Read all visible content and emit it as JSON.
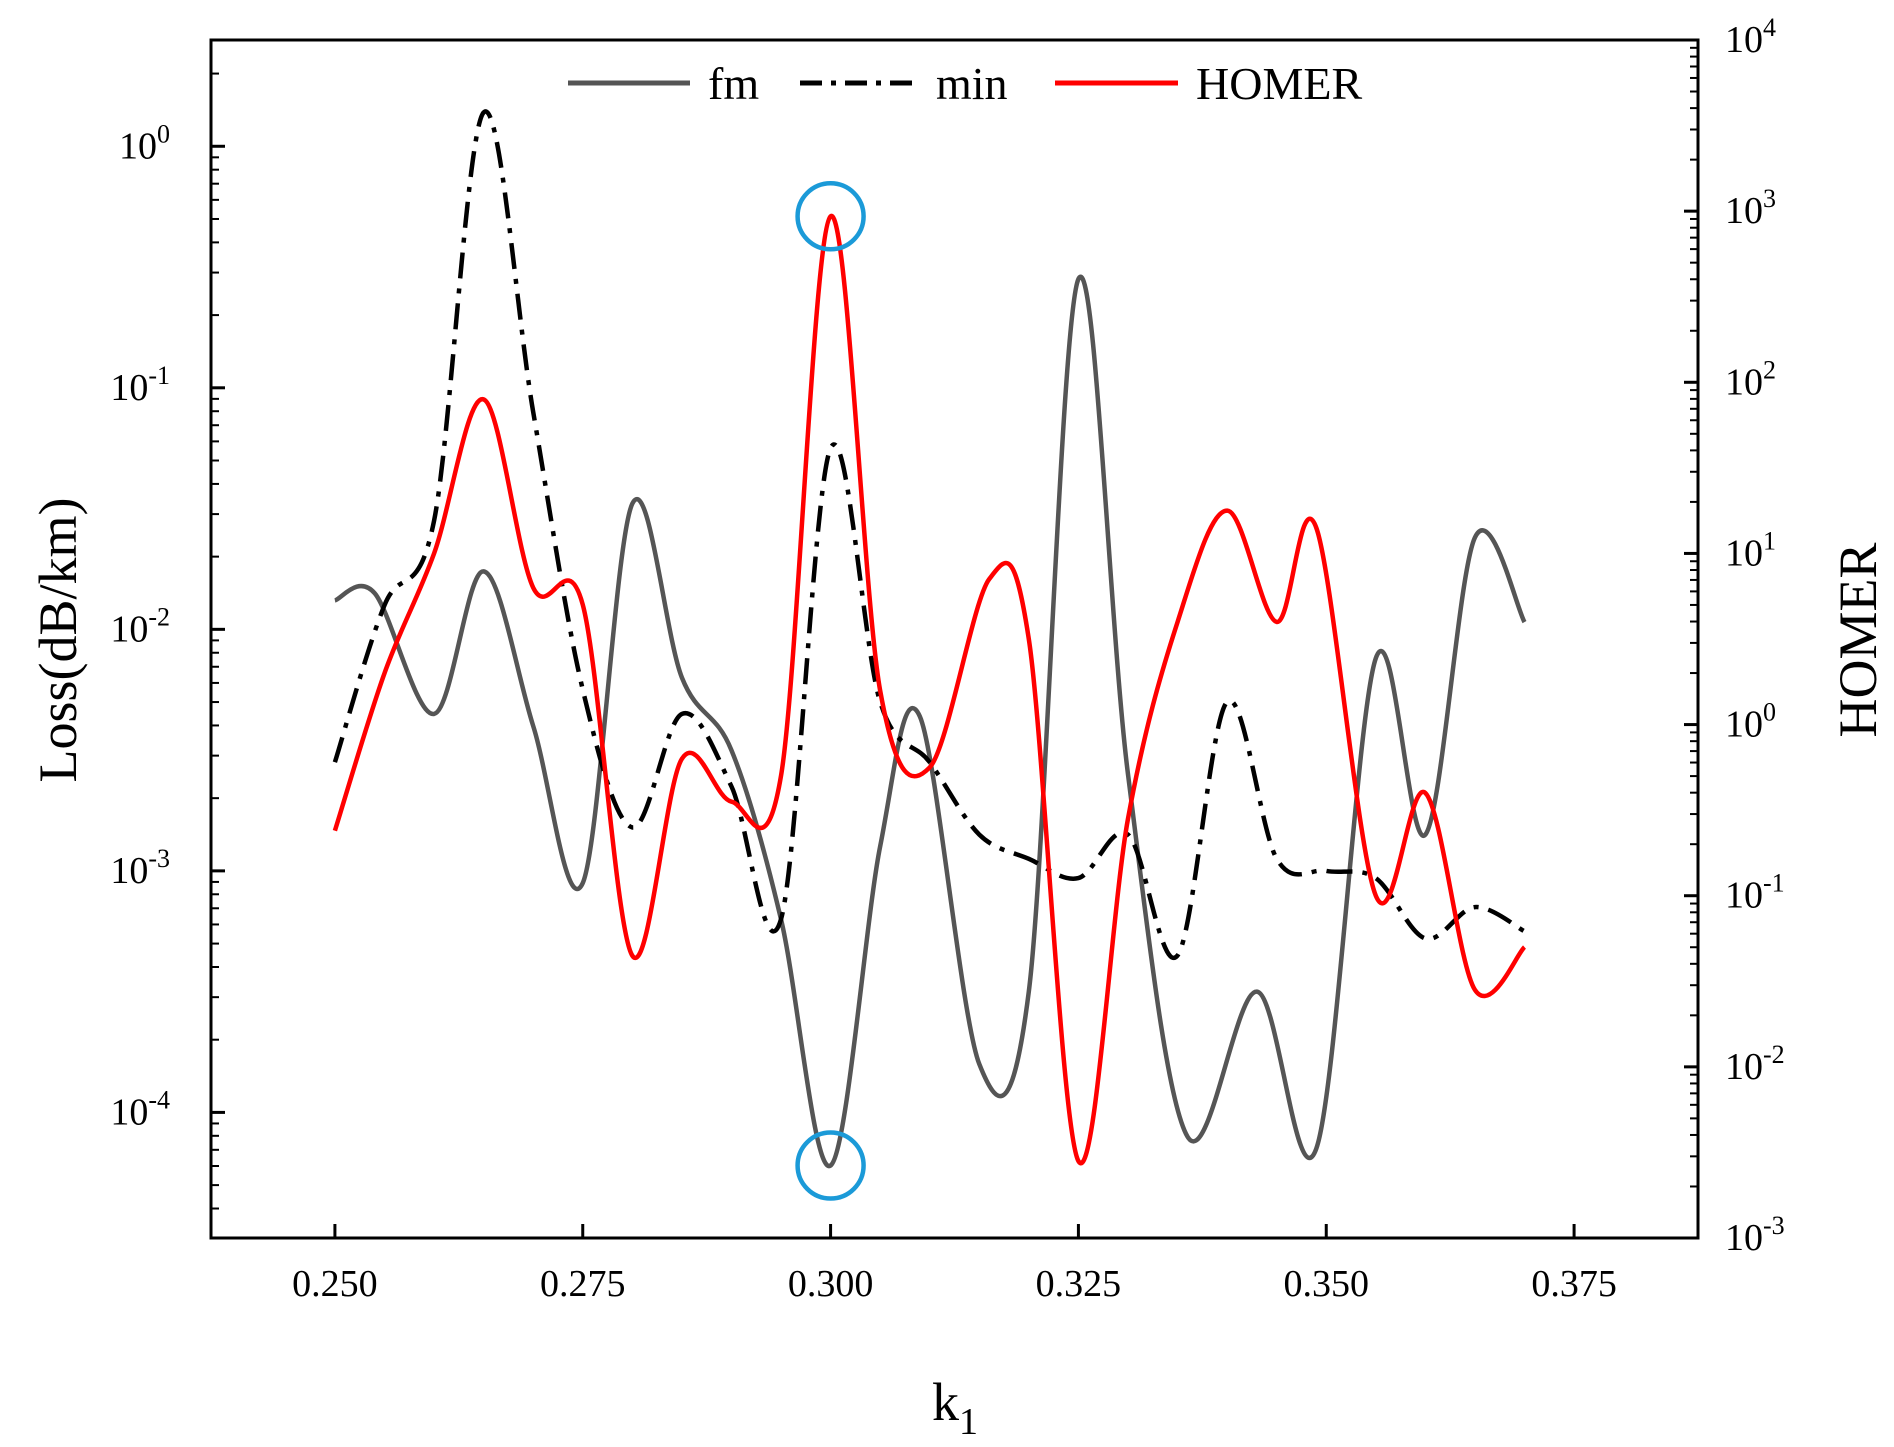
{
  "chart_data": {
    "type": "line",
    "title": "",
    "xlabel": "k",
    "xlabel_sub": "1",
    "ylabel": "Loss(dB/km)",
    "y2label": "HOMER",
    "xlim": [
      0.2375,
      0.3875
    ],
    "ylim_log10": [
      -4.52,
      0.44
    ],
    "y2lim_log10": [
      -3,
      4
    ],
    "x_ticks": [
      "0.250",
      "0.275",
      "0.300",
      "0.325",
      "0.350",
      "0.375"
    ],
    "x_tick_values": [
      0.25,
      0.275,
      0.3,
      0.325,
      0.35,
      0.375
    ],
    "y_ticks": [
      {
        "base": "10",
        "exp": "0",
        "value": 0
      },
      {
        "base": "10",
        "exp": "-1",
        "value": -1
      },
      {
        "base": "10",
        "exp": "-2",
        "value": -2
      },
      {
        "base": "10",
        "exp": "-3",
        "value": -3
      },
      {
        "base": "10",
        "exp": "-4",
        "value": -4
      }
    ],
    "y2_ticks": [
      {
        "base": "10",
        "exp": "4",
        "value": 4
      },
      {
        "base": "10",
        "exp": "3",
        "value": 3
      },
      {
        "base": "10",
        "exp": "2",
        "value": 2
      },
      {
        "base": "10",
        "exp": "1",
        "value": 1
      },
      {
        "base": "10",
        "exp": "0",
        "value": 0
      },
      {
        "base": "10",
        "exp": "-1",
        "value": -1
      },
      {
        "base": "10",
        "exp": "-2",
        "value": -2
      },
      {
        "base": "10",
        "exp": "-3",
        "value": -3
      }
    ],
    "legend": {
      "position": "top-center"
    },
    "series": [
      {
        "name": "fm",
        "axis": "left",
        "color": "#555555",
        "dash": "solid",
        "x": [
          0.25,
          0.254,
          0.26,
          0.265,
          0.27,
          0.275,
          0.28,
          0.285,
          0.29,
          0.295,
          0.3,
          0.305,
          0.309,
          0.315,
          0.32,
          0.325,
          0.33,
          0.336,
          0.343,
          0.349,
          0.355,
          0.36,
          0.365,
          0.37
        ],
        "log10": [
          -1.88,
          -1.85,
          -2.35,
          -1.76,
          -2.4,
          -3.05,
          -1.48,
          -2.2,
          -2.5,
          -3.2,
          -4.22,
          -2.9,
          -2.36,
          -3.8,
          -3.5,
          -0.55,
          -2.6,
          -4.1,
          -3.5,
          -4.15,
          -2.12,
          -2.85,
          -1.62,
          -1.97
        ]
      },
      {
        "name": "min",
        "axis": "left",
        "color": "#000000",
        "dash": "dashdot",
        "x": [
          0.25,
          0.255,
          0.26,
          0.265,
          0.27,
          0.275,
          0.28,
          0.285,
          0.29,
          0.295,
          0.3,
          0.305,
          0.31,
          0.315,
          0.32,
          0.325,
          0.33,
          0.335,
          0.34,
          0.345,
          0.35,
          0.355,
          0.36,
          0.365,
          0.37
        ],
        "log10": [
          -2.55,
          -1.9,
          -1.55,
          0.14,
          -1.1,
          -2.25,
          -2.82,
          -2.35,
          -2.65,
          -3.2,
          -1.25,
          -2.3,
          -2.55,
          -2.85,
          -2.95,
          -3.03,
          -2.85,
          -3.35,
          -2.3,
          -2.95,
          -3.0,
          -3.03,
          -3.28,
          -3.15,
          -3.25
        ]
      },
      {
        "name": "HOMER",
        "axis": "right",
        "color": "#ff0000",
        "dash": "solid",
        "x": [
          0.25,
          0.255,
          0.26,
          0.265,
          0.27,
          0.275,
          0.28,
          0.285,
          0.29,
          0.295,
          0.3,
          0.305,
          0.31,
          0.316,
          0.32,
          0.325,
          0.33,
          0.335,
          0.34,
          0.345,
          0.349,
          0.355,
          0.36,
          0.365,
          0.37
        ],
        "log10": [
          -0.62,
          0.3,
          1.0,
          1.9,
          0.8,
          0.7,
          -1.35,
          -0.2,
          -0.45,
          -0.3,
          2.97,
          0.2,
          -0.25,
          0.85,
          0.5,
          -2.55,
          -0.55,
          0.6,
          1.25,
          0.6,
          1.15,
          -1.0,
          -0.4,
          -1.55,
          -1.3
        ]
      }
    ],
    "annotations": [
      {
        "type": "circle",
        "target": "HOMER peak",
        "x": 0.3,
        "axis": "right",
        "log10": 2.97,
        "color": "#1b9ad8"
      },
      {
        "type": "circle",
        "target": "fm minimum",
        "x": 0.3,
        "axis": "left",
        "log10": -4.22,
        "color": "#1b9ad8"
      }
    ]
  }
}
